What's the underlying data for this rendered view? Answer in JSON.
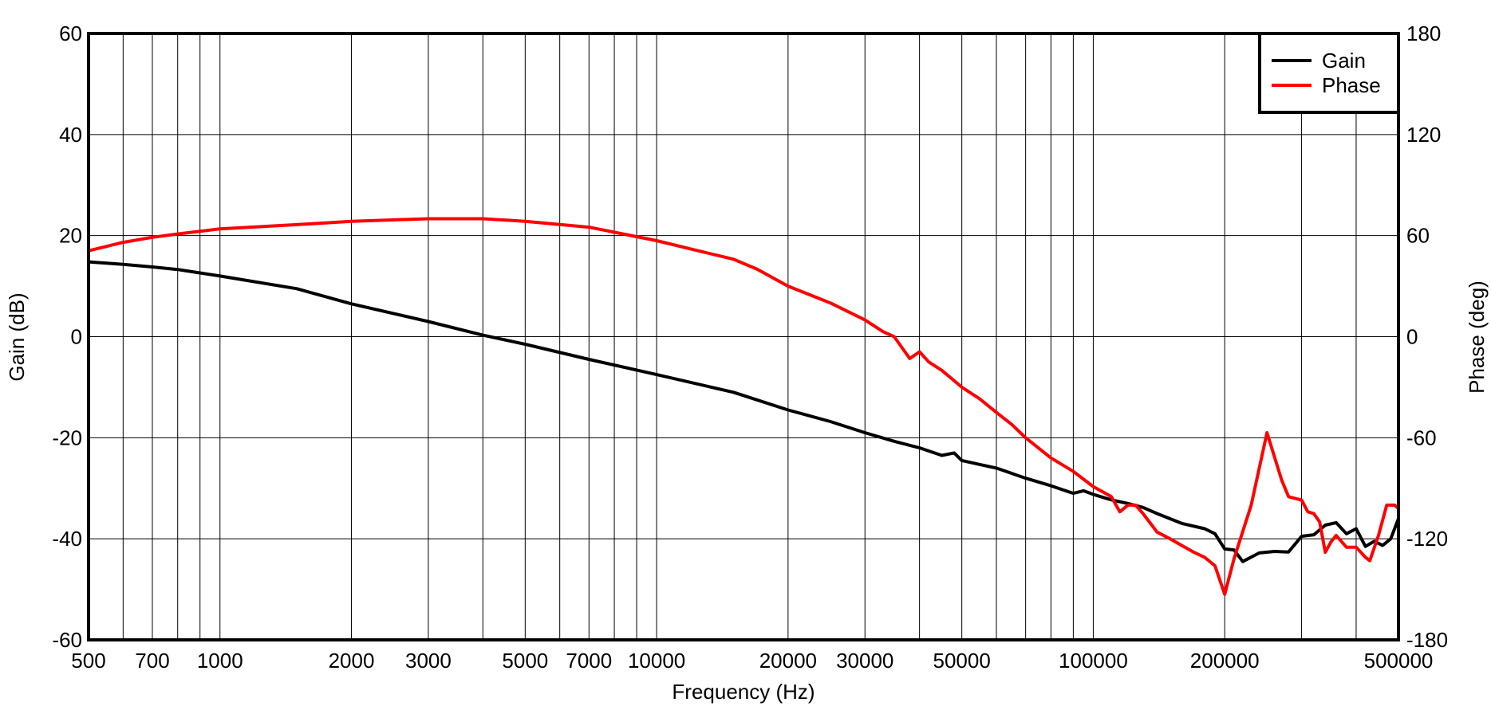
{
  "chart_data": {
    "type": "line",
    "title": "",
    "xlabel": "Frequency (Hz)",
    "ylabel": "Gain (dB)",
    "y2label": "Phase (deg)",
    "xscale": "log",
    "xlim": [
      500,
      500000
    ],
    "ylim": [
      -60,
      60
    ],
    "y2lim": [
      -180,
      180
    ],
    "grid": true,
    "legend_position": "top-right",
    "x_ticks": [
      500,
      700,
      1000,
      2000,
      3000,
      5000,
      7000,
      10000,
      20000,
      30000,
      50000,
      100000,
      200000,
      500000
    ],
    "y_ticks": [
      -60,
      -40,
      -20,
      0,
      20,
      40,
      60
    ],
    "y2_ticks": [
      -180,
      -120,
      -60,
      0,
      60,
      120,
      180
    ],
    "series": [
      {
        "name": "Gain",
        "axis": "left",
        "color": "#000000",
        "x": [
          500,
          600,
          700,
          800,
          1000,
          1500,
          2000,
          3000,
          4000,
          5000,
          7000,
          10000,
          15000,
          20000,
          25000,
          30000,
          35000,
          40000,
          45000,
          48000,
          50000,
          55000,
          60000,
          70000,
          80000,
          90000,
          95000,
          100000,
          110000,
          120000,
          130000,
          140000,
          160000,
          180000,
          190000,
          200000,
          210000,
          220000,
          240000,
          260000,
          280000,
          300000,
          320000,
          340000,
          360000,
          380000,
          400000,
          420000,
          440000,
          460000,
          480000,
          500000
        ],
        "values": [
          14.8,
          14.3,
          13.8,
          13.3,
          12,
          9.5,
          6.5,
          3,
          0.3,
          -1.5,
          -4.5,
          -7.5,
          -11,
          -14.5,
          -16.8,
          -19,
          -20.7,
          -22,
          -23.5,
          -23,
          -24.5,
          -25.3,
          -26,
          -28,
          -29.5,
          -31,
          -30.5,
          -31.2,
          -32.3,
          -33,
          -33.8,
          -35,
          -37,
          -38,
          -39,
          -42,
          -42.2,
          -44.5,
          -42.8,
          -42.5,
          -42.6,
          -39.5,
          -39.2,
          -37.3,
          -36.8,
          -39,
          -38,
          -41.5,
          -40.5,
          -41.3,
          -40,
          -36
        ]
      },
      {
        "name": "Phase",
        "axis": "right",
        "color": "#ff0000",
        "x": [
          500,
          600,
          700,
          800,
          1000,
          1500,
          2000,
          3000,
          4000,
          5000,
          7000,
          10000,
          12000,
          15000,
          17000,
          20000,
          25000,
          30000,
          33000,
          35000,
          38000,
          40000,
          42000,
          45000,
          50000,
          55000,
          60000,
          65000,
          70000,
          80000,
          90000,
          100000,
          110000,
          115000,
          120000,
          125000,
          130000,
          140000,
          150000,
          170000,
          180000,
          190000,
          200000,
          210000,
          230000,
          250000,
          270000,
          280000,
          300000,
          310000,
          320000,
          330000,
          340000,
          350000,
          360000,
          380000,
          400000,
          420000,
          430000,
          450000,
          470000,
          490000,
          500000
        ],
        "values": [
          51,
          56,
          59,
          61,
          64,
          66.5,
          68.5,
          70,
          70,
          68.5,
          65,
          57,
          52,
          46,
          40,
          30,
          20,
          10,
          3,
          0,
          -13,
          -9,
          -15,
          -20,
          -30,
          -37,
          -45,
          -52,
          -60,
          -72,
          -80,
          -89,
          -95,
          -104,
          -100,
          -100,
          -105,
          -116,
          -120,
          -128,
          -131,
          -136,
          -153,
          -132,
          -100,
          -57,
          -85,
          -95,
          -97,
          -104,
          -105,
          -110,
          -128,
          -122,
          -118,
          -125,
          -125,
          -131,
          -133,
          -118,
          -100,
          -100,
          -102
        ]
      }
    ]
  }
}
